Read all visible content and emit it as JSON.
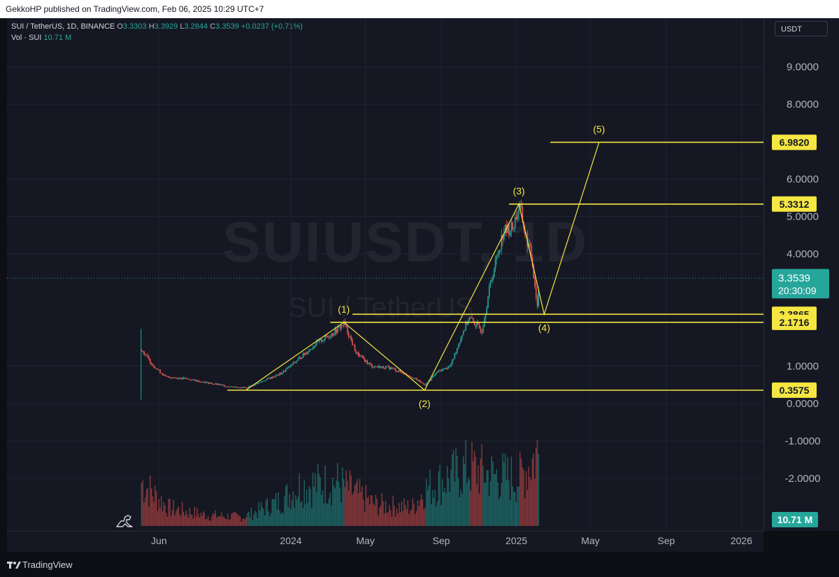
{
  "header": {
    "published": "GekkoHP published on TradingView.com, Feb 06, 2025 10:29 UTC+7"
  },
  "legend": {
    "symbol": "SUI / TetherUS, 1D, BINANCE",
    "o_label": "O",
    "o": "3.3303",
    "h_label": "H",
    "h": "3.3929",
    "l_label": "L",
    "l": "3.2844",
    "c_label": "C",
    "c": "3.3539",
    "change": "+0.0237 (+0.71%)",
    "vol_label": "Vol · SUI",
    "vol": "10.71 M"
  },
  "unit_label": "USDT",
  "watermark": {
    "ticker": "SUIUSDT, 1D",
    "name": "SUI / TetherUS"
  },
  "footer": {
    "brand": "TradingView"
  },
  "colors": {
    "up": "#26a69a",
    "down": "#ef5350",
    "level": "#f5e642",
    "background": "#151823"
  },
  "chart_data": {
    "type": "line",
    "title": "SUI / TetherUS, 1D, BINANCE",
    "ylim": [
      -2.8,
      9.8
    ],
    "y_ticks": [
      "9.0000",
      "8.0000",
      "6.0000",
      "5.0000",
      "4.0000",
      "1.0000",
      "0.0000",
      "-1.0000",
      "-2.0000"
    ],
    "x_ticks": [
      "Jun",
      "2024",
      "May",
      "Sep",
      "2025",
      "May",
      "Sep",
      "2026"
    ],
    "price_series": [
      {
        "date": "2023-05-03",
        "value": 1.45
      },
      {
        "date": "2023-05-20",
        "value": 1.05
      },
      {
        "date": "2023-06-10",
        "value": 0.72
      },
      {
        "date": "2023-07-15",
        "value": 0.66
      },
      {
        "date": "2023-08-20",
        "value": 0.55
      },
      {
        "date": "2023-09-20",
        "value": 0.46
      },
      {
        "date": "2023-10-20",
        "value": 0.42
      },
      {
        "date": "2023-11-15",
        "value": 0.6
      },
      {
        "date": "2023-12-15",
        "value": 0.8
      },
      {
        "date": "2024-01-10",
        "value": 1.15
      },
      {
        "date": "2024-02-10",
        "value": 1.6
      },
      {
        "date": "2024-03-10",
        "value": 1.9
      },
      {
        "date": "2024-03-27",
        "value": 2.15
      },
      {
        "date": "2024-04-15",
        "value": 1.35
      },
      {
        "date": "2024-05-10",
        "value": 1.0
      },
      {
        "date": "2024-06-10",
        "value": 0.95
      },
      {
        "date": "2024-07-10",
        "value": 0.75
      },
      {
        "date": "2024-08-05",
        "value": 0.5
      },
      {
        "date": "2024-08-25",
        "value": 0.85
      },
      {
        "date": "2024-09-15",
        "value": 1.0
      },
      {
        "date": "2024-10-05",
        "value": 1.9
      },
      {
        "date": "2024-10-15",
        "value": 2.3
      },
      {
        "date": "2024-11-05",
        "value": 1.95
      },
      {
        "date": "2024-11-20",
        "value": 3.3
      },
      {
        "date": "2024-12-10",
        "value": 4.6
      },
      {
        "date": "2024-12-25",
        "value": 4.7
      },
      {
        "date": "2025-01-05",
        "value": 5.3
      },
      {
        "date": "2025-01-15",
        "value": 4.5
      },
      {
        "date": "2025-01-25",
        "value": 3.9
      },
      {
        "date": "2025-02-03",
        "value": 2.6
      },
      {
        "date": "2025-02-06",
        "value": 3.35
      }
    ],
    "volume_series": [
      {
        "date": "2023-05-03",
        "value": 0.6
      },
      {
        "date": "2023-06-15",
        "value": 0.25
      },
      {
        "date": "2023-08-15",
        "value": 0.15
      },
      {
        "date": "2023-10-15",
        "value": 0.12
      },
      {
        "date": "2023-12-15",
        "value": 0.35
      },
      {
        "date": "2024-01-15",
        "value": 0.55
      },
      {
        "date": "2024-03-15",
        "value": 0.6
      },
      {
        "date": "2024-05-15",
        "value": 0.3
      },
      {
        "date": "2024-07-15",
        "value": 0.25
      },
      {
        "date": "2024-08-05",
        "value": 0.5
      },
      {
        "date": "2024-10-15",
        "value": 0.8
      },
      {
        "date": "2024-11-20",
        "value": 0.7
      },
      {
        "date": "2025-01-05",
        "value": 0.65
      },
      {
        "date": "2025-02-03",
        "value": 1.0
      }
    ],
    "elliott_wave": [
      {
        "label": "(1)",
        "date": "2024-03-27",
        "value": 2.1716
      },
      {
        "label": "(2)",
        "date": "2024-08-05",
        "value": 0.3575
      },
      {
        "label": "(3)",
        "date": "2025-01-05",
        "value": 5.3312
      },
      {
        "label": "(4)",
        "date": "2025-02-15",
        "value": 2.3865
      },
      {
        "label": "(5)",
        "date": "2025-05-15",
        "value": 6.982
      }
    ],
    "wave_start": {
      "date": "2023-10-20",
      "value": 0.3575
    },
    "levels": [
      {
        "value": 6.982,
        "label": "6.9820"
      },
      {
        "value": 5.3312,
        "label": "5.3312"
      },
      {
        "value": 2.3865,
        "label": "2.3865"
      },
      {
        "value": 2.1716,
        "label": "2.1716"
      },
      {
        "value": 0.3575,
        "label": "0.3575"
      }
    ],
    "last_price": {
      "value": 3.3539,
      "label": "3.3539",
      "countdown": "20:30:09"
    },
    "volume_tag": "10.71 M"
  }
}
